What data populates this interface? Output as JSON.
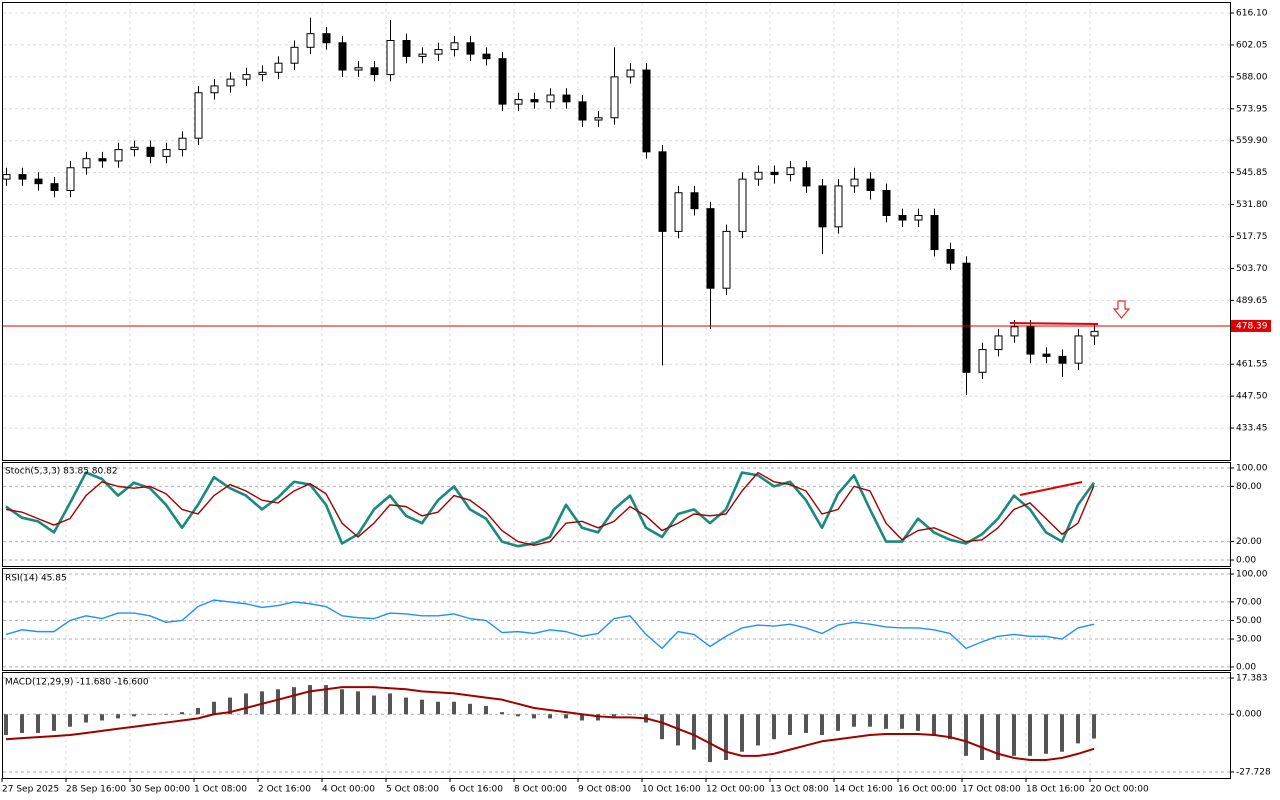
{
  "chart_data": [
    {
      "type": "candlestick",
      "categories": [
        "27 Sep 2025",
        null,
        null,
        null,
        "28 Sep 16:00",
        null,
        null,
        null,
        "30 Sep 00:00",
        null,
        null,
        null,
        "1 Oct 08:00",
        null,
        null,
        null,
        "2 Oct 16:00",
        null,
        null,
        null,
        "4 Oct 00:00",
        null,
        null,
        null,
        "5 Oct 08:00",
        null,
        null,
        null,
        "6 Oct 16:00",
        null,
        null,
        null,
        "8 Oct 00:00",
        null,
        null,
        null,
        "9 Oct 08:00",
        null,
        null,
        null,
        "10 Oct 16:00",
        null,
        null,
        null,
        "12 Oct 00:00",
        null,
        null,
        null,
        "13 Oct 08:00",
        null,
        null,
        null,
        "14 Oct 16:00",
        null,
        null,
        null,
        "16 Oct 00:00",
        null,
        null,
        null,
        "17 Oct 08:00",
        null,
        null,
        null,
        "18 Oct 16:00",
        null,
        null,
        null,
        "20 Oct 00:00"
      ],
      "open": [
        543,
        545,
        543,
        541,
        538,
        548,
        552,
        551,
        556,
        557,
        553,
        556,
        561,
        581,
        584,
        587,
        589,
        590,
        594,
        601,
        607,
        603,
        591,
        592,
        589,
        604,
        597,
        598,
        600,
        603,
        598,
        596,
        576,
        578,
        577,
        580,
        577,
        569,
        570,
        588,
        591,
        555,
        520,
        537,
        530,
        495,
        520,
        543,
        546,
        545,
        548,
        540,
        522,
        540,
        543,
        538,
        527,
        525,
        527,
        512,
        506,
        458,
        468,
        474,
        478,
        466,
        465,
        462,
        474
      ],
      "high": [
        548,
        548,
        546,
        544,
        551,
        555,
        555,
        559,
        560,
        560,
        559,
        564,
        584,
        587,
        590,
        592,
        593,
        597,
        604,
        614,
        610,
        606,
        595,
        595,
        613,
        607,
        601,
        603,
        606,
        606,
        601,
        599,
        581,
        581,
        583,
        583,
        580,
        573,
        601,
        594,
        594,
        558,
        540,
        540,
        533,
        523,
        546,
        549,
        549,
        551,
        551,
        543,
        543,
        548,
        546,
        541,
        530,
        530,
        530,
        515,
        509,
        471,
        477,
        481,
        481,
        469,
        468,
        477,
        479
      ],
      "low": [
        540,
        540,
        538,
        535,
        535,
        545,
        548,
        548,
        553,
        550,
        550,
        553,
        558,
        578,
        581,
        584,
        586,
        587,
        591,
        598,
        600,
        588,
        588,
        586,
        586,
        594,
        594,
        595,
        597,
        595,
        593,
        573,
        573,
        574,
        574,
        574,
        566,
        566,
        567,
        585,
        552,
        461,
        517,
        527,
        477,
        492,
        517,
        540,
        541,
        542,
        537,
        510,
        519,
        537,
        534,
        524,
        522,
        522,
        509,
        503,
        448,
        455,
        465,
        471,
        462,
        462,
        456,
        459,
        470
      ],
      "close": [
        545,
        543,
        541,
        538,
        548,
        552,
        551,
        556,
        557,
        553,
        556,
        561,
        581,
        584,
        587,
        589,
        590,
        594,
        601,
        607,
        603,
        591,
        592,
        589,
        604,
        597,
        598,
        600,
        603,
        598,
        596,
        576,
        578,
        577,
        580,
        577,
        569,
        570,
        588,
        591,
        555,
        520,
        537,
        530,
        495,
        520,
        543,
        546,
        545,
        548,
        540,
        522,
        540,
        543,
        538,
        527,
        525,
        527,
        512,
        506,
        458,
        468,
        474,
        478,
        466,
        465,
        462,
        474,
        476
      ],
      "last_price": 478.39,
      "ylim": [
        419.4,
        620.5
      ],
      "yticks": [
        {
          "value": 616.1,
          "label": "616.10"
        },
        602.05,
        {
          "value": 588,
          "label": "588.00"
        },
        573.95,
        {
          "value": 559.9,
          "label": "559.90"
        },
        545.85,
        {
          "value": 531.8,
          "label": "531.80"
        },
        517.75,
        {
          "value": 503.7,
          "label": "503.70"
        },
        489.65,
        {
          "value": 461.55,
          "label": "461.55"
        },
        {
          "value": 447.5,
          "label": "447.50"
        },
        433.45
      ],
      "grid": true
    },
    {
      "type": "line",
      "title": "Stoch(5,3,3) 83.85 80.82",
      "series": [
        {
          "color": "#1a8a7a",
          "values": [
            58,
            46,
            42,
            30,
            62,
            95,
            88,
            70,
            84,
            78,
            60,
            35,
            60,
            90,
            78,
            70,
            55,
            68,
            85,
            82,
            60,
            18,
            28,
            55,
            70,
            48,
            40,
            65,
            80,
            55,
            45,
            20,
            15,
            18,
            25,
            60,
            35,
            30,
            55,
            70,
            35,
            25,
            50,
            55,
            40,
            55,
            95,
            92,
            80,
            85,
            65,
            35,
            72,
            92,
            55,
            20,
            20,
            45,
            30,
            22,
            18,
            28,
            45,
            70,
            55,
            30,
            20,
            60,
            84
          ]
        },
        {
          "color": "#a00000",
          "values": [
            55,
            52,
            45,
            38,
            45,
            70,
            85,
            80,
            78,
            80,
            72,
            55,
            50,
            70,
            82,
            75,
            65,
            62,
            75,
            83,
            72,
            40,
            25,
            40,
            60,
            58,
            48,
            52,
            70,
            65,
            52,
            32,
            20,
            16,
            20,
            40,
            42,
            35,
            42,
            58,
            48,
            32,
            40,
            50,
            48,
            50,
            75,
            95,
            85,
            82,
            75,
            50,
            55,
            80,
            75,
            40,
            22,
            32,
            35,
            28,
            20,
            22,
            35,
            55,
            62,
            45,
            28,
            40,
            81
          ]
        }
      ],
      "ylim": [
        -6.5,
        105.4
      ],
      "yticks": [
        {
          "value": 100,
          "label": "100.00"
        },
        {
          "value": 80,
          "label": "80.00"
        },
        {
          "value": 20,
          "label": "20.00"
        },
        {
          "value": 0,
          "label": "0.00"
        }
      ]
    },
    {
      "type": "line",
      "title": "RSI(14) 45.85",
      "series": [
        {
          "color": "#1e90ff",
          "values": [
            35,
            40,
            38,
            38,
            50,
            55,
            52,
            58,
            58,
            55,
            48,
            50,
            65,
            72,
            70,
            68,
            64,
            66,
            70,
            68,
            65,
            55,
            53,
            52,
            58,
            57,
            55,
            55,
            57,
            52,
            50,
            37,
            38,
            36,
            40,
            38,
            33,
            36,
            52,
            55,
            35,
            20,
            38,
            35,
            22,
            33,
            42,
            45,
            44,
            46,
            42,
            36,
            45,
            48,
            46,
            43,
            42,
            42,
            40,
            36,
            20,
            27,
            33,
            35,
            33,
            33,
            30,
            42,
            46
          ]
        }
      ],
      "ylim": [
        -3.3,
        105.4
      ],
      "yticks": [
        {
          "value": 100,
          "label": "100.00"
        },
        {
          "value": 70,
          "label": "70.00"
        },
        {
          "value": 50,
          "label": "50.00"
        },
        {
          "value": 30,
          "label": "30.00"
        },
        {
          "value": 0,
          "label": "0.00"
        }
      ]
    },
    {
      "type": "bar",
      "title": "MACD(12,29,9) -11.680 -16.600",
      "series": [
        {
          "type": "bar",
          "color": "#555555",
          "values": [
            -10,
            -9,
            -9,
            -8,
            -6,
            -4,
            -3,
            -2,
            -1,
            0,
            0,
            1,
            3,
            6,
            8,
            10,
            11,
            12,
            13,
            14,
            14,
            12,
            11,
            9,
            10,
            8,
            7,
            6,
            6,
            5,
            4,
            1,
            -1,
            -2,
            -2,
            -2,
            -3,
            -3,
            -1,
            0,
            -4,
            -12,
            -15,
            -17,
            -23,
            -22,
            -18,
            -15,
            -12,
            -10,
            -9,
            -10,
            -8,
            -6,
            -6,
            -7,
            -7,
            -8,
            -10,
            -12,
            -20,
            -22,
            -22,
            -20,
            -20,
            -19,
            -18,
            -14,
            -11.68
          ]
        },
        {
          "type": "line",
          "color": "#a00000",
          "values": [
            -12,
            -11.5,
            -11,
            -10.5,
            -10,
            -9,
            -8,
            -7,
            -6,
            -5,
            -4,
            -3,
            -2,
            0,
            1,
            3,
            5,
            7,
            9,
            11,
            12,
            13,
            13,
            13,
            12.5,
            12,
            11,
            10.5,
            10,
            9,
            8,
            7,
            5,
            3,
            2,
            1,
            0,
            -1,
            -1.5,
            -1.5,
            -2,
            -4,
            -7,
            -10,
            -14,
            -18,
            -20,
            -20,
            -19,
            -17,
            -15,
            -13,
            -12,
            -11,
            -10,
            -9.5,
            -9.5,
            -9.5,
            -10,
            -11,
            -13,
            -16,
            -19,
            -21,
            -22,
            -22,
            -21,
            -19,
            -16.6
          ]
        }
      ],
      "ylim": [
        -30.64,
        19.81
      ],
      "yticks": [
        17.383,
        {
          "value": 0,
          "label": "0.000"
        },
        -27.728
      ]
    }
  ]
}
